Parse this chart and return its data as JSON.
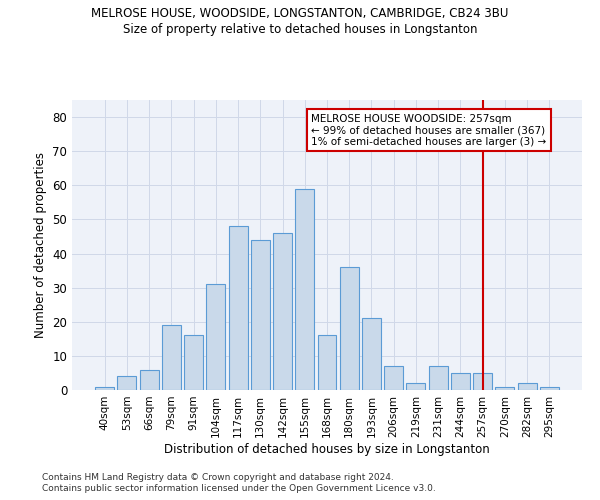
{
  "title": "MELROSE HOUSE, WOODSIDE, LONGSTANTON, CAMBRIDGE, CB24 3BU",
  "subtitle": "Size of property relative to detached houses in Longstanton",
  "xlabel": "Distribution of detached houses by size in Longstanton",
  "ylabel": "Number of detached properties",
  "footer1": "Contains HM Land Registry data © Crown copyright and database right 2024.",
  "footer2": "Contains public sector information licensed under the Open Government Licence v3.0.",
  "bar_labels": [
    "40sqm",
    "53sqm",
    "66sqm",
    "79sqm",
    "91sqm",
    "104sqm",
    "117sqm",
    "130sqm",
    "142sqm",
    "155sqm",
    "168sqm",
    "180sqm",
    "193sqm",
    "206sqm",
    "219sqm",
    "231sqm",
    "244sqm",
    "257sqm",
    "270sqm",
    "282sqm",
    "295sqm"
  ],
  "bar_values": [
    1,
    4,
    6,
    19,
    16,
    31,
    48,
    44,
    46,
    59,
    16,
    36,
    21,
    7,
    2,
    7,
    5,
    5,
    1,
    2,
    1
  ],
  "bar_color": "#c9d9ea",
  "bar_edge_color": "#5b9bd5",
  "grid_color": "#d0d8e8",
  "background_color": "#eef2f9",
  "annotation_lines": [
    "MELROSE HOUSE WOODSIDE: 257sqm",
    "← 99% of detached houses are smaller (367)",
    "1% of semi-detached houses are larger (3) →"
  ],
  "vline_x_index": 17,
  "vline_color": "#cc0000",
  "ylim": [
    0,
    85
  ],
  "yticks": [
    0,
    10,
    20,
    30,
    40,
    50,
    60,
    70,
    80
  ]
}
